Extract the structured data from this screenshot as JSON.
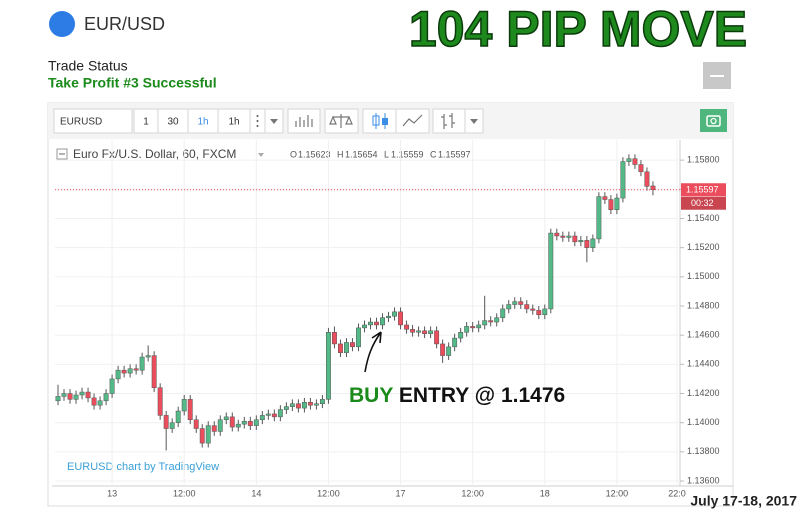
{
  "header": {
    "symbol": "EUR/USD",
    "headline": "104 PIP MOVE"
  },
  "trade": {
    "label": "Trade Status",
    "status": "Take Profit #3 Successful"
  },
  "toolbar": {
    "symbol": "EURUSD",
    "intervals": [
      "1",
      "30",
      "1h",
      "1h"
    ]
  },
  "chart_data": {
    "type": "candlestick",
    "title": "Euro Fx/U.S. Dollar, 60, FXCM",
    "ohlc_labels": [
      "O",
      "H",
      "L",
      "C"
    ],
    "categories": [
      null,
      null,
      null,
      null,
      null,
      null,
      null,
      null,
      null,
      "13",
      null,
      null,
      null,
      null,
      null,
      null,
      null,
      null,
      null,
      null,
      null,
      "12:00",
      null,
      null,
      null,
      null,
      null,
      null,
      null,
      null,
      null,
      null,
      null,
      "14",
      null,
      null,
      null,
      null,
      null,
      null,
      null,
      null,
      null,
      null,
      null,
      "12:00",
      null,
      null,
      null,
      null,
      null,
      null,
      null,
      null,
      null,
      null,
      null,
      "17",
      null,
      null,
      null,
      null,
      null,
      null,
      null,
      null,
      null,
      null,
      null,
      "12:00",
      null,
      null,
      null,
      null,
      null,
      null,
      null,
      null,
      null,
      null,
      null,
      "18",
      null,
      null,
      null,
      null,
      null,
      null,
      null,
      null,
      null,
      null,
      null,
      "12:00",
      null,
      null,
      null,
      null,
      null,
      null,
      null,
      null,
      null,
      "22:0"
    ],
    "open": [
      1.1415,
      1.1418,
      1.142,
      1.1416,
      1.1419,
      1.1421,
      1.1417,
      1.1412,
      1.1415,
      1.142,
      1.143,
      1.1436,
      1.1434,
      1.1437,
      1.1436,
      1.1445,
      1.1446,
      1.1424,
      1.1405,
      1.1396,
      1.14,
      1.1408,
      1.1416,
      1.1402,
      1.1396,
      1.1386,
      1.1398,
      1.1394,
      1.1402,
      1.1404,
      1.1397,
      1.1399,
      1.1401,
      1.1398,
      1.1402,
      1.1405,
      1.1406,
      1.1404,
      1.1409,
      1.1411,
      1.1413,
      1.141,
      1.1414,
      1.1412,
      1.1413,
      1.1416,
      1.1462,
      1.1454,
      1.1448,
      1.1455,
      1.1452,
      1.1465,
      1.1467,
      1.1469,
      1.1467,
      1.1472,
      1.1473,
      1.1476,
      1.1467,
      1.1464,
      1.1462,
      1.1463,
      1.1461,
      1.1463,
      1.1454,
      1.1446,
      1.1452,
      1.1458,
      1.1462,
      1.1466,
      1.1465,
      1.1467,
      1.147,
      1.1469,
      1.1472,
      1.1478,
      1.1481,
      1.1483,
      1.1481,
      1.1478,
      1.1477,
      1.1474,
      1.1478,
      1.153,
      1.1528,
      1.1527,
      1.1528,
      1.1524,
      1.1525,
      1.152,
      1.1526,
      1.1555,
      1.1553,
      1.1546,
      1.1554,
      1.1579,
      1.1581,
      1.1577,
      1.1572,
      1.15623,
      null,
      null,
      null,
      null
    ],
    "high": [
      1.1426,
      1.1423,
      1.1423,
      1.1422,
      1.1424,
      1.1424,
      1.142,
      1.1418,
      1.1423,
      1.1433,
      1.1439,
      1.1439,
      1.144,
      1.144,
      1.1448,
      1.1453,
      1.1449,
      1.1427,
      1.1408,
      1.1403,
      1.1411,
      1.1419,
      1.1419,
      1.1405,
      1.1399,
      1.1401,
      1.1401,
      1.1405,
      1.1407,
      1.1407,
      1.1402,
      1.1404,
      1.1404,
      1.1405,
      1.1408,
      1.1409,
      1.1409,
      1.1412,
      1.1414,
      1.1416,
      1.1416,
      1.1417,
      1.1417,
      1.1416,
      1.1419,
      1.1465,
      1.1466,
      1.1457,
      1.1458,
      1.1458,
      1.1468,
      1.147,
      1.1472,
      1.1472,
      1.1475,
      1.1476,
      1.1479,
      1.1479,
      1.147,
      1.1467,
      1.1466,
      1.1466,
      1.1466,
      1.1466,
      1.1457,
      1.1455,
      1.1461,
      1.1465,
      1.1469,
      1.1469,
      1.147,
      1.1487,
      1.1473,
      1.1475,
      1.1481,
      1.1484,
      1.1486,
      1.1486,
      1.1484,
      1.1481,
      1.148,
      1.1481,
      1.1533,
      1.1533,
      1.1531,
      1.1531,
      1.1531,
      1.1528,
      1.1528,
      1.1529,
      1.1558,
      1.1558,
      1.1556,
      1.1557,
      1.1582,
      1.1584,
      1.1584,
      1.158,
      1.1575,
      1.15654,
      null,
      null,
      null,
      null
    ],
    "low": [
      1.1412,
      1.1415,
      1.1413,
      1.1413,
      1.1416,
      1.1414,
      1.1409,
      1.1409,
      1.1412,
      1.1417,
      1.1427,
      1.1431,
      1.1431,
      1.1433,
      1.1433,
      1.1442,
      1.1421,
      1.1402,
      1.1381,
      1.1393,
      1.1397,
      1.1405,
      1.1399,
      1.1393,
      1.1383,
      1.1383,
      1.1391,
      1.1391,
      1.1399,
      1.1394,
      1.1394,
      1.1396,
      1.1395,
      1.1395,
      1.1399,
      1.1402,
      1.1401,
      1.1401,
      1.1406,
      1.1408,
      1.1407,
      1.1407,
      1.1409,
      1.1409,
      1.141,
      1.1413,
      1.1451,
      1.1445,
      1.1445,
      1.1449,
      1.1449,
      1.1462,
      1.1464,
      1.1464,
      1.1464,
      1.1469,
      1.147,
      1.1464,
      1.1461,
      1.1459,
      1.1459,
      1.1458,
      1.1458,
      1.1451,
      1.1441,
      1.1443,
      1.1449,
      1.1455,
      1.1459,
      1.1462,
      1.1462,
      1.1464,
      1.1466,
      1.1466,
      1.1469,
      1.1475,
      1.1478,
      1.1478,
      1.1475,
      1.1474,
      1.1471,
      1.1471,
      1.1475,
      1.1525,
      1.1524,
      1.1524,
      1.1521,
      1.1521,
      1.151,
      1.1517,
      1.1523,
      1.155,
      1.1543,
      1.1543,
      1.1551,
      1.1576,
      1.1574,
      1.1569,
      1.1559,
      1.15559,
      null,
      null,
      null,
      null
    ],
    "close": [
      1.1418,
      1.142,
      1.1416,
      1.1419,
      1.1421,
      1.1417,
      1.1412,
      1.1415,
      1.142,
      1.143,
      1.1436,
      1.1434,
      1.1437,
      1.1436,
      1.1445,
      1.1446,
      1.1424,
      1.1405,
      1.1396,
      1.14,
      1.1408,
      1.1416,
      1.1402,
      1.1396,
      1.1386,
      1.1398,
      1.1394,
      1.1402,
      1.1404,
      1.1397,
      1.1399,
      1.1401,
      1.1398,
      1.1402,
      1.1405,
      1.1406,
      1.1404,
      1.1409,
      1.1411,
      1.1413,
      1.141,
      1.1414,
      1.1412,
      1.1413,
      1.1416,
      1.1462,
      1.1454,
      1.1448,
      1.1455,
      1.1452,
      1.1465,
      1.1467,
      1.1469,
      1.1467,
      1.1472,
      1.1473,
      1.1476,
      1.1467,
      1.1464,
      1.1462,
      1.1463,
      1.1461,
      1.1463,
      1.1454,
      1.1446,
      1.1452,
      1.1458,
      1.1462,
      1.1466,
      1.1465,
      1.1467,
      1.147,
      1.1469,
      1.1472,
      1.1478,
      1.1481,
      1.1483,
      1.1481,
      1.1478,
      1.1477,
      1.1474,
      1.1478,
      1.153,
      1.1528,
      1.1527,
      1.1528,
      1.1524,
      1.1525,
      1.152,
      1.1526,
      1.1555,
      1.1553,
      1.1546,
      1.1554,
      1.1579,
      1.1581,
      1.1577,
      1.1572,
      1.1562,
      1.15597,
      null,
      null,
      null,
      null
    ],
    "up_color": "#53b987",
    "down_color": "#eb4d5c",
    "ylim": [
      1.13566,
      1.15938
    ],
    "yticks": [
      {
        "value": 1.136,
        "label": "1.13600"
      },
      {
        "value": 1.138,
        "label": "1.13800"
      },
      {
        "value": 1.14,
        "label": "1.14000"
      },
      {
        "value": 1.142,
        "label": "1.14200"
      },
      {
        "value": 1.144,
        "label": "1.14400"
      },
      {
        "value": 1.146,
        "label": "1.14600"
      },
      {
        "value": 1.148,
        "label": "1.14800"
      },
      {
        "value": 1.15,
        "label": "1.15000"
      },
      {
        "value": 1.152,
        "label": "1.15200"
      },
      {
        "value": 1.154,
        "label": "1.15400"
      },
      {
        "value": 1.156,
        "label": "1.15600"
      },
      {
        "value": 1.158,
        "label": "1.15800"
      }
    ],
    "grid": true,
    "last_time": "00:32",
    "annotation": {
      "highlight": "BUY",
      "text": "ENTRY @ 1.1476"
    },
    "credit": "EURUSD chart by TradingView"
  },
  "footer": {
    "date": "July 17-18, 2017"
  }
}
